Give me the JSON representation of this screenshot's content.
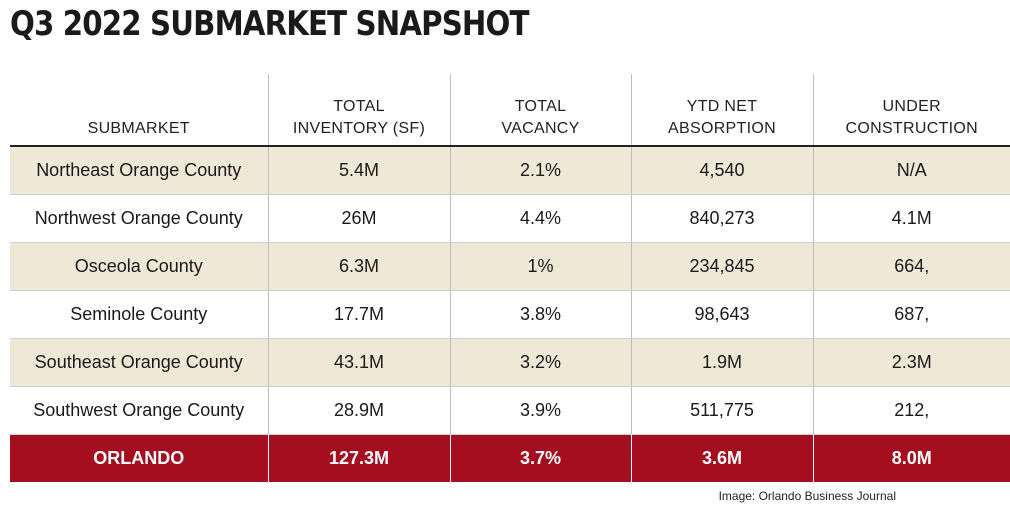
{
  "title": "Q3 2022 SUBMARKET SNAPSHOT",
  "headers": [
    "SUBMARKET",
    "TOTAL\nINVENTORY (SF)",
    "TOTAL\nVACANCY",
    "YTD NET\nABSORPTION",
    "UNDER\nCONSTRUCTION"
  ],
  "rows": [
    [
      "Northeast Orange County",
      "5.4M",
      "2.1%",
      "4,540",
      "N/A"
    ],
    [
      "Northwest Orange County",
      "26M",
      "4.4%",
      "840,273",
      "4.1M"
    ],
    [
      "Osceola County",
      "6.3M",
      "1%",
      "234,845",
      "664,"
    ],
    [
      "Seminole County",
      "17.7M",
      "3.8%",
      "98,643",
      "687,"
    ],
    [
      "Southeast Orange County",
      "43.1M",
      "3.2%",
      "1.9M",
      "2.3M"
    ],
    [
      "Southwest Orange County",
      "28.9M",
      "3.9%",
      "511,775",
      "212,"
    ]
  ],
  "total": [
    "ORLANDO",
    "127.3M",
    "3.7%",
    "3.6M",
    "8.0M"
  ],
  "credit": "Image: Orlando Business Journal",
  "colors": {
    "total_row": "#a50e1e",
    "shaded_row": "#efe8d7"
  }
}
